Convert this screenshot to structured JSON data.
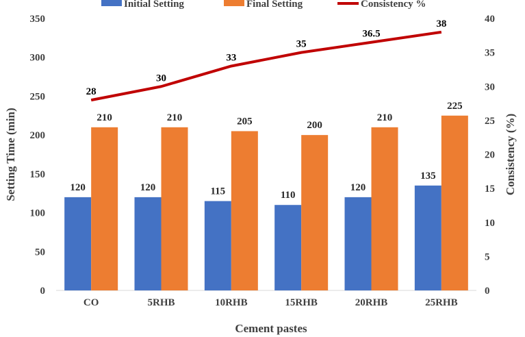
{
  "colors": {
    "initial": "#4472C4",
    "final": "#ED7D31",
    "consistency": "#C00000",
    "axis_text": "#404040",
    "axis_line": "#D9D9D9"
  },
  "chart_data": {
    "type": "bar",
    "categories": [
      "CO",
      "5RHB",
      "10RHB",
      "15RHB",
      "20RHB",
      "25RHB"
    ],
    "series": [
      {
        "name": "Initial Setting",
        "axis": "left",
        "kind": "bar",
        "values": [
          120,
          120,
          115,
          110,
          120,
          135
        ]
      },
      {
        "name": "Final Setting",
        "axis": "left",
        "kind": "bar",
        "values": [
          210,
          210,
          205,
          200,
          210,
          225
        ]
      },
      {
        "name": "Consistency %",
        "axis": "right",
        "kind": "line",
        "values": [
          28,
          30,
          33,
          35,
          36.5,
          38
        ]
      }
    ],
    "title": "",
    "xlabel": "Cement pastes",
    "ylabel": "Setting Time (min)",
    "y2label": "Consistency (%)",
    "ylim": [
      0,
      350
    ],
    "y2lim": [
      0,
      40
    ],
    "yticks": [
      0,
      50,
      100,
      150,
      200,
      250,
      300,
      350
    ],
    "y2ticks": [
      0,
      5,
      10,
      15,
      20,
      25,
      30,
      35,
      40
    ],
    "legend_position": "top"
  }
}
